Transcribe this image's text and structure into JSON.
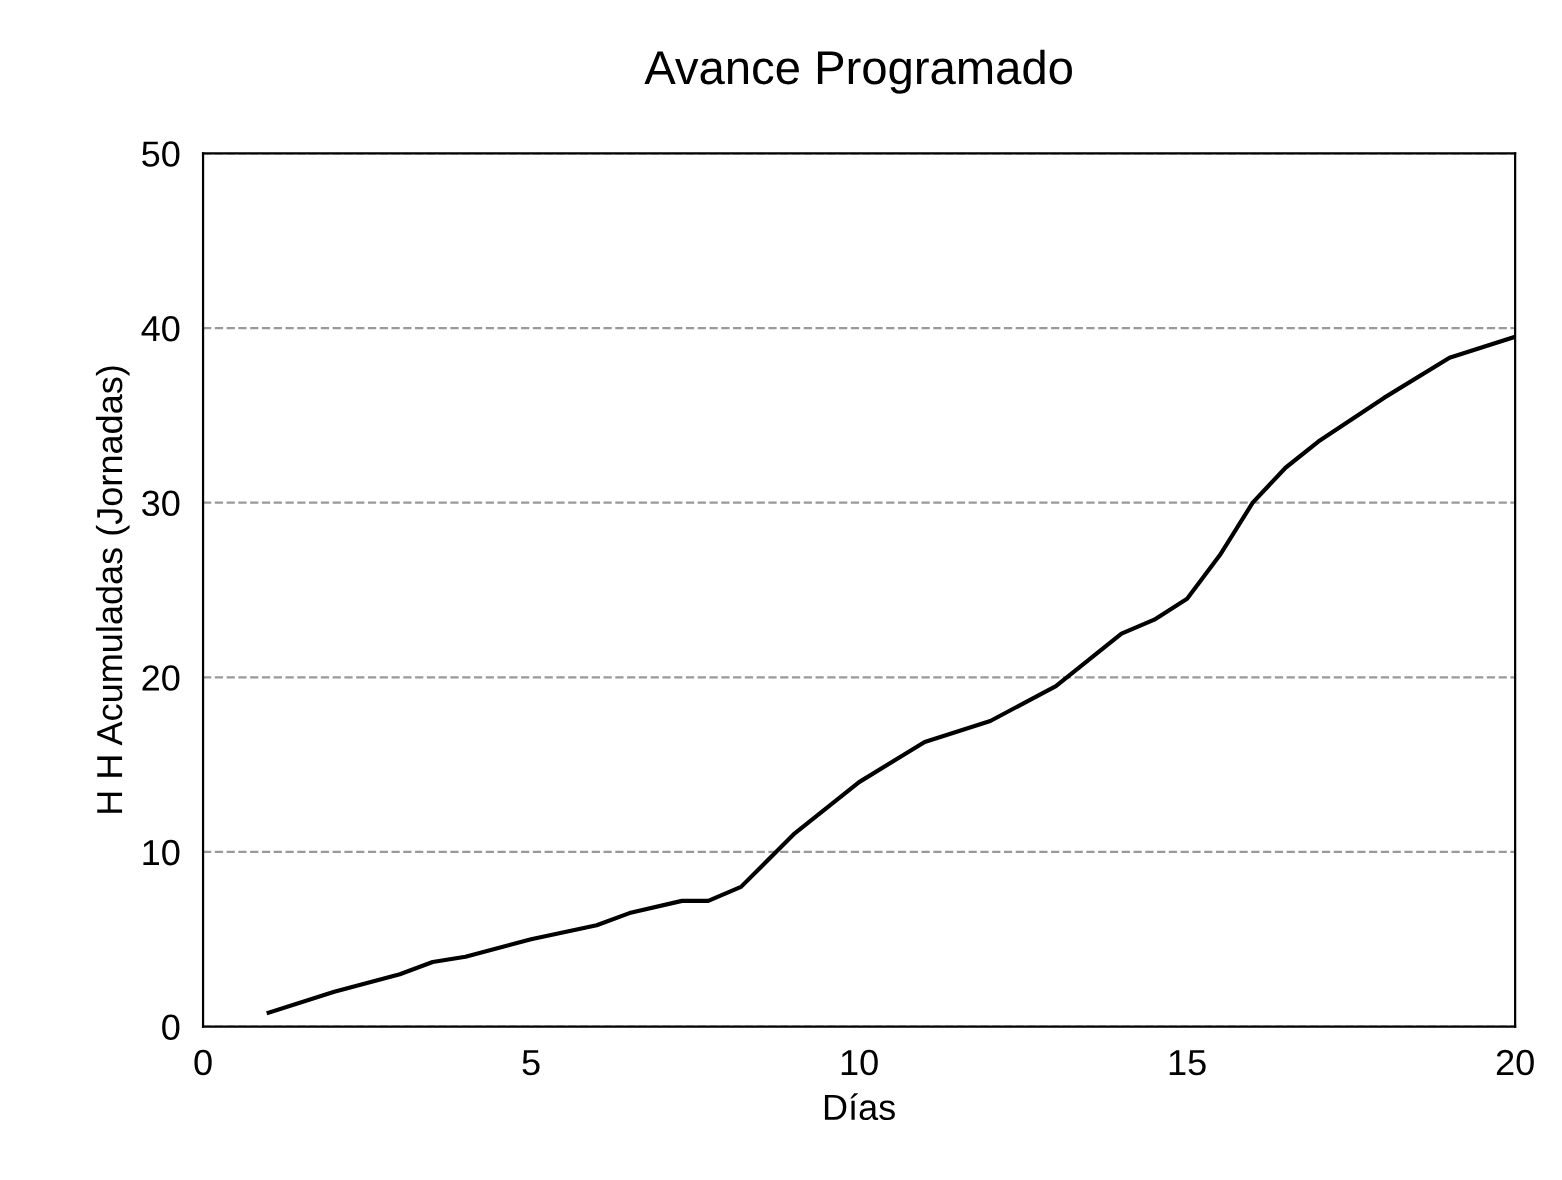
{
  "chart_data": {
    "type": "line",
    "title": "Avance Programado",
    "xlabel": "Días",
    "ylabel": "H H Acumuladas (Jornadas)",
    "x": [
      1,
      2,
      3,
      3.5,
      4,
      5,
      6,
      6.5,
      7.3,
      7.7,
      8.2,
      9,
      10,
      11,
      12,
      13,
      13.5,
      14,
      14.5,
      15,
      15.5,
      16,
      16.5,
      17,
      18,
      19,
      20
    ],
    "series": [
      {
        "color": "#000000",
        "values": [
          0.8,
          2,
          3,
          3.7,
          4,
          5,
          5.8,
          6.5,
          7.2,
          7.2,
          8,
          11,
          14,
          16.3,
          17.5,
          19.5,
          21,
          22.5,
          23.3,
          24.5,
          27,
          30,
          32,
          33.5,
          36,
          38.3,
          39.5
        ]
      }
    ],
    "xlim": [
      0,
      20
    ],
    "xticks": [
      0,
      5,
      10,
      15,
      20
    ],
    "ylim": [
      0,
      50
    ],
    "yticks": [
      0,
      10,
      20,
      30,
      40,
      50
    ],
    "grid": "y",
    "legend": false,
    "marker": "none",
    "line_style": "solid"
  }
}
